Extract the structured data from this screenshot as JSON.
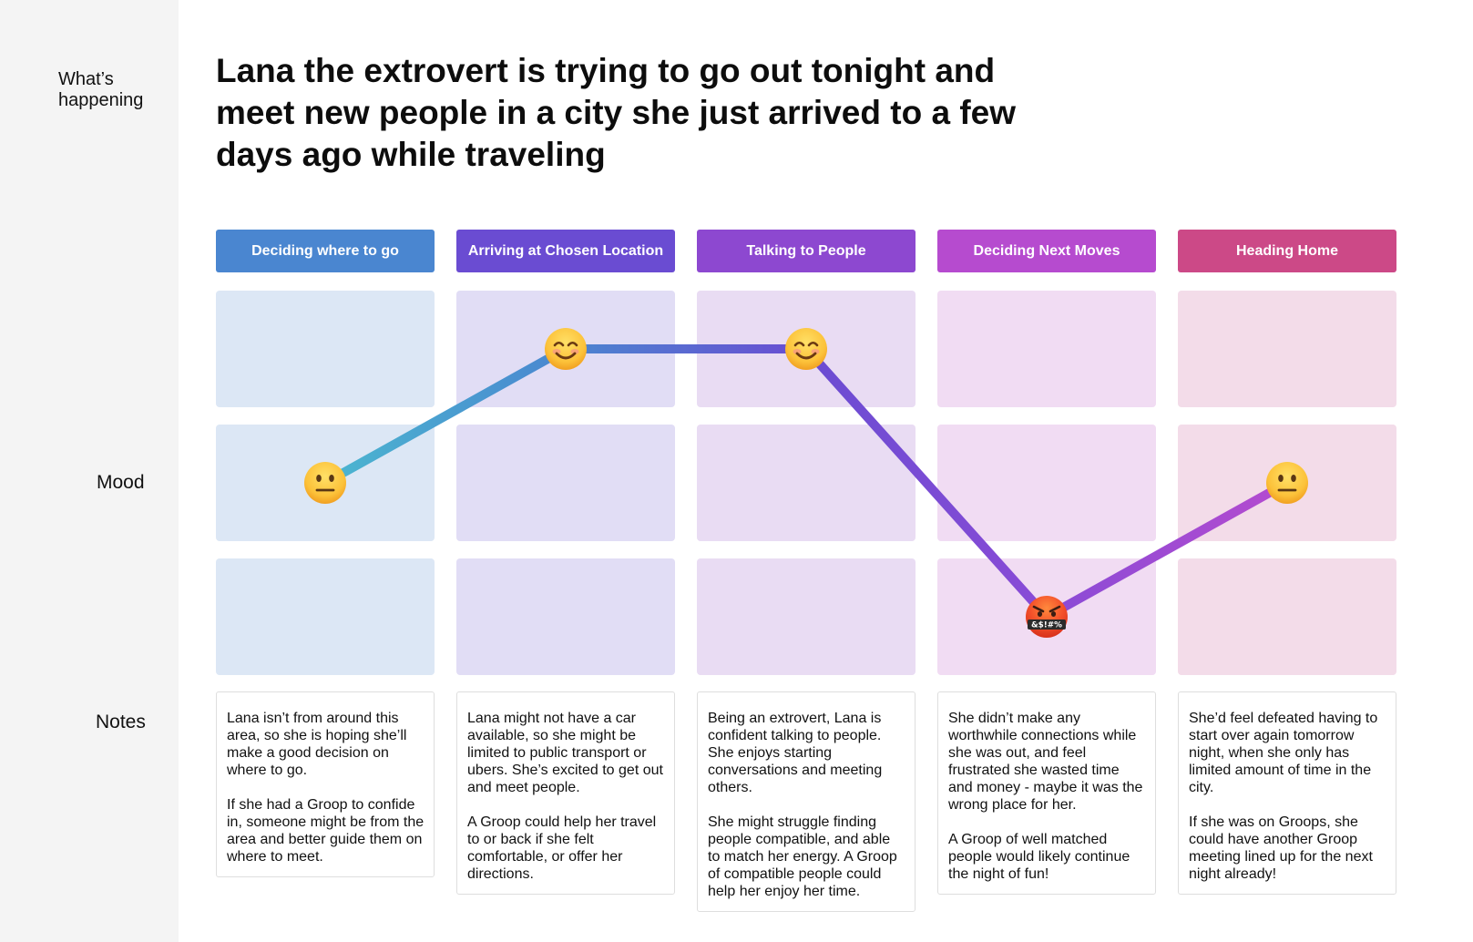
{
  "labels": {
    "whats_happening": "What’s\nhappening",
    "mood": "Mood",
    "notes": "Notes"
  },
  "scenario": "Lana the extrovert is trying to go out tonight and meet new people in a city she just arrived to a few days ago while traveling",
  "stages": [
    {
      "title": "Deciding where to go",
      "header_color": "#4a86d0",
      "cell_color": "#dce7f5",
      "mood": "neutral",
      "mood_level": 2,
      "note": "Lana isn’t from around this area, so she is hoping she’ll make a good decision on where to go.\n\nIf she had a Groop to confide in, someone might be from the area and better guide them on where to meet."
    },
    {
      "title": "Arriving at Chosen Location",
      "header_color": "#6a4cd2",
      "cell_color": "#e1ddf5",
      "mood": "happy",
      "mood_level": 3,
      "note": "Lana might not have a car available, so she might be limited to public transport or ubers.  She’s excited to get out and meet people.\n\nA Groop could help her travel to or back if she felt comfortable, or offer her directions."
    },
    {
      "title": "Talking to People",
      "header_color": "#8d48d0",
      "cell_color": "#e9dcf3",
      "mood": "happy",
      "mood_level": 3,
      "note": "Being an extrovert, Lana is confident talking to people.  She enjoys starting conversations and meeting others.\n\nShe might struggle finding people compatible, and able to match her energy.  A Groop of compatible people could help her enjoy her time."
    },
    {
      "title": "Deciding Next Moves",
      "header_color": "#b64bcf",
      "cell_color": "#f1dcf3",
      "mood": "angry",
      "mood_level": 1,
      "note": "She didn’t make any worthwhile connections while she was out, and feel frustrated she wasted time and money - maybe it was the wrong place for her.\n\nA Groop of well matched people would likely continue the night of fun!"
    },
    {
      "title": "Heading Home",
      "header_color": "#cc4987",
      "cell_color": "#f3dce9",
      "mood": "neutral",
      "mood_level": 2,
      "note": "She’d feel defeated having to start over again tomorrow night, when she only has limited amount of time in the city.\n\nIf she was on Groops, she could have another Groop meeting lined up for the next night already!"
    }
  ],
  "angry_symbol_text": "&$!#%",
  "line_gradient": [
    "#4bb7d0",
    "#4a86d0",
    "#6a4cd2",
    "#8a4bd6",
    "#b64bcf"
  ]
}
